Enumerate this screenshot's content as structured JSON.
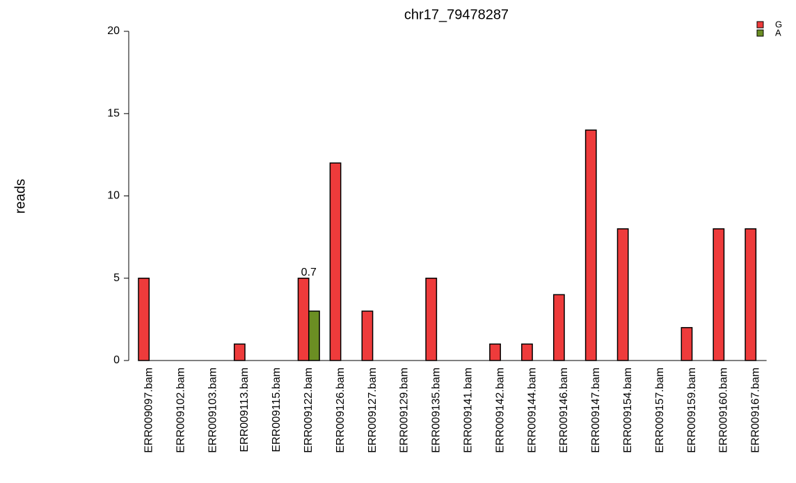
{
  "chart_data": {
    "type": "bar",
    "title": "chr17_79478287",
    "y_label": "reads",
    "categories": [
      "ERR009097.bam",
      "ERR009102.bam",
      "ERR009103.bam",
      "ERR009113.bam",
      "ERR009115.bam",
      "ERR009122.bam",
      "ERR009126.bam",
      "ERR009127.bam",
      "ERR009129.bam",
      "ERR009135.bam",
      "ERR009141.bam",
      "ERR009142.bam",
      "ERR009144.bam",
      "ERR009146.bam",
      "ERR009147.bam",
      "ERR009154.bam",
      "ERR009157.bam",
      "ERR009159.bam",
      "ERR009160.bam",
      "ERR009167.bam"
    ],
    "series": [
      {
        "name": "G",
        "color": "#ee3b3b",
        "values": [
          5,
          0,
          0,
          1,
          0,
          5,
          12,
          3,
          0,
          5,
          0,
          1,
          1,
          4,
          14,
          8,
          0,
          2,
          8,
          8
        ]
      },
      {
        "name": "A",
        "color": "#6b8e23",
        "values": [
          0,
          0,
          0,
          0,
          0,
          3,
          0,
          0,
          0,
          0,
          0,
          0,
          0,
          0,
          0,
          0,
          0,
          0,
          0,
          0
        ]
      }
    ],
    "annotations": [
      {
        "text": "0.7",
        "category": "ERR009122.bam"
      }
    ],
    "ylim": [
      0,
      20
    ],
    "yticks": [
      0,
      5,
      10,
      15,
      20
    ],
    "legend": "top-right"
  }
}
